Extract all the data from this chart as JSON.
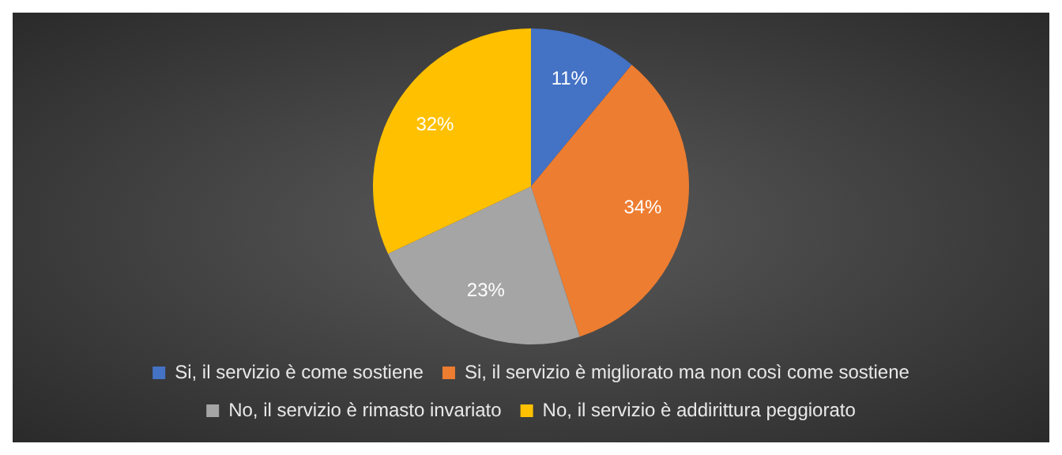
{
  "chart_data": {
    "type": "pie",
    "categories": [
      "Si, il servizio è come sostiene",
      "Si, il servizio è migliorato ma non così come sostiene",
      "No, il servizio è rimasto invariato",
      "No, il servizio è addirittura peggiorato"
    ],
    "values": [
      11,
      34,
      23,
      32
    ],
    "colors": [
      "#4472c4",
      "#ed7d31",
      "#a5a5a5",
      "#ffc000"
    ],
    "value_labels": [
      "11%",
      "34%",
      "23%",
      "32%"
    ],
    "legend": "bottom"
  }
}
